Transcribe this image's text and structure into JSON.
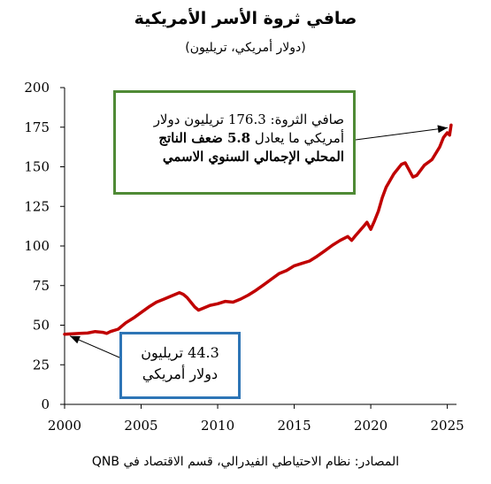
{
  "chart_data": {
    "type": "line",
    "title": "صافي ثروة الأسر الأمريكية",
    "subtitle": "(دولار أمريكي، تريليون)",
    "xlabel": "",
    "ylabel": "",
    "xlim": [
      2000,
      2025.6
    ],
    "ylim": [
      0,
      200
    ],
    "xticks": [
      2000,
      2005,
      2010,
      2015,
      2020,
      2025
    ],
    "yticks": [
      0,
      25,
      50,
      75,
      100,
      125,
      150,
      175,
      200
    ],
    "grid": false,
    "legend": "none",
    "series": [
      {
        "color": "#c00000",
        "x": [
          2000.0,
          2000.5,
          2001.0,
          2001.5,
          2002.0,
          2002.5,
          2002.75,
          2003.0,
          2003.5,
          2004.0,
          2004.5,
          2005.0,
          2005.5,
          2006.0,
          2006.5,
          2007.0,
          2007.5,
          2007.75,
          2008.0,
          2008.5,
          2008.75,
          2009.0,
          2009.5,
          2010.0,
          2010.5,
          2011.0,
          2011.5,
          2012.0,
          2012.5,
          2013.0,
          2013.5,
          2014.0,
          2014.5,
          2015.0,
          2015.5,
          2016.0,
          2016.5,
          2017.0,
          2017.5,
          2018.0,
          2018.5,
          2018.75,
          2019.0,
          2019.5,
          2019.75,
          2020.0,
          2020.25,
          2020.5,
          2020.75,
          2021.0,
          2021.5,
          2022.0,
          2022.25,
          2022.5,
          2022.75,
          2023.0,
          2023.5,
          2024.0,
          2024.5,
          2024.75,
          2025.0,
          2025.15,
          2025.25
        ],
        "y": [
          44.3,
          44.5,
          44.8,
          45.0,
          46.0,
          45.5,
          44.8,
          46.0,
          47.5,
          51.5,
          54.5,
          58.0,
          61.5,
          64.5,
          66.5,
          68.5,
          70.5,
          69.5,
          67.5,
          61.5,
          59.5,
          60.5,
          62.5,
          63.5,
          65.0,
          64.5,
          66.5,
          69.0,
          72.0,
          75.5,
          79.0,
          82.5,
          84.5,
          87.5,
          89.0,
          90.5,
          93.5,
          97.0,
          100.5,
          103.5,
          106.0,
          103.5,
          106.5,
          112.0,
          115.0,
          110.5,
          116.0,
          122.0,
          130.5,
          137.0,
          145.5,
          151.5,
          152.5,
          148.0,
          143.5,
          144.5,
          151.0,
          154.5,
          162.5,
          168.5,
          171.5,
          170.0,
          176.3
        ]
      }
    ],
    "annotations": [
      {
        "x": 2000,
        "y": 44.3,
        "text": "44.3 تريليون دولار أمريكي"
      },
      {
        "x": 2025.25,
        "y": 176.3,
        "text": "صافي الثروة: 176.3 تريليون دولار أمريكي ما يعادل 5.8 ضعف الناتج المحلي الإجمالي السنوي الاسمي"
      }
    ]
  },
  "annotation_green": {
    "line1": "صافي الثروة: 176.3 تريليون دولار",
    "line2_plain": "أمريكي ما يعادل ",
    "line2_bold": "5.8 ضعف الناتج",
    "line3_bold": "المحلي الإجمالي السنوي الاسمي",
    "border_color": "#4f8a35"
  },
  "annotation_blue": {
    "line1": "44.3 تريليون",
    "line2": "دولار أمريكي",
    "border_color": "#2e75b6"
  },
  "source": "المصادر: نظام الاحتياطي الفيدرالي، قسم الاقتصاد في QNB"
}
